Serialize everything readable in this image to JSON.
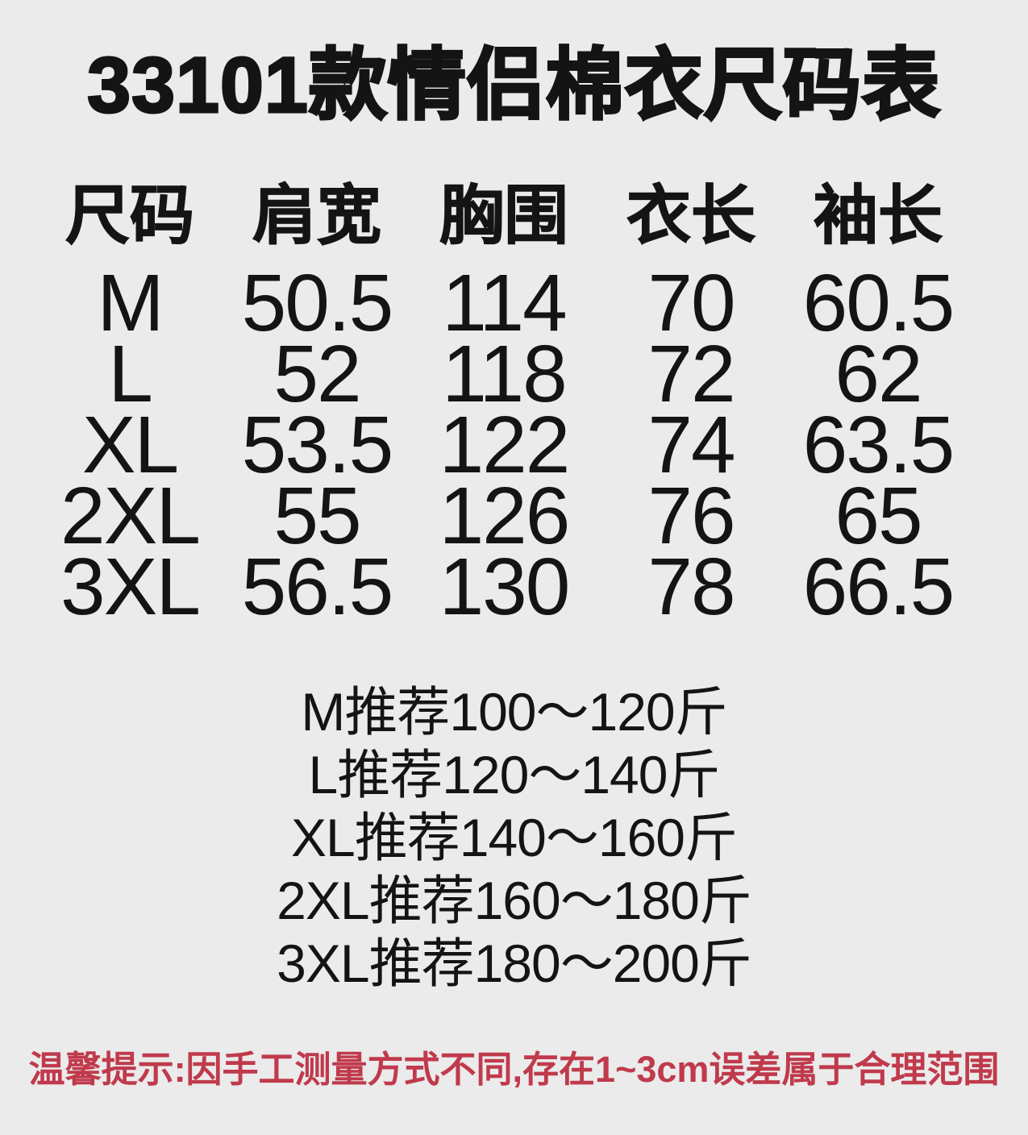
{
  "page": {
    "title": "33101款情侣棉衣尺码表",
    "background_color": "#ebebeb",
    "text_color": "#141414",
    "note_color": "#c03a4c"
  },
  "table": {
    "headers": [
      "尺码",
      "肩宽",
      "胸围",
      "衣长",
      "袖长"
    ],
    "rows": [
      [
        "M",
        "50.5",
        "114",
        "70",
        "60.5"
      ],
      [
        "L",
        "52",
        "118",
        "72",
        "62"
      ],
      [
        "XL",
        "53.5",
        "122",
        "74",
        "63.5"
      ],
      [
        "2XL",
        "55",
        "126",
        "76",
        "65"
      ],
      [
        "3XL",
        "56.5",
        "130",
        "78",
        "66.5"
      ]
    ]
  },
  "recommendations": [
    "M推荐100～120斤",
    "L推荐120～140斤",
    "XL推荐140～160斤",
    "2XL推荐160～180斤",
    "3XL推荐180～200斤"
  ],
  "note": "温馨提示:因手工测量方式不同,存在1~3cm误差属于合理范围"
}
